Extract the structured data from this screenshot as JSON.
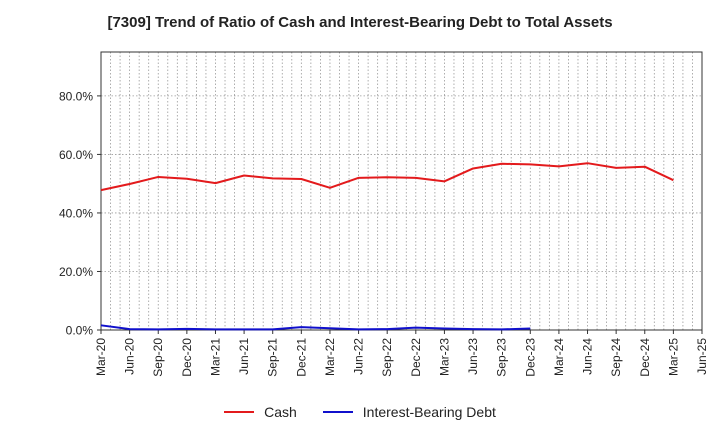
{
  "chart_data": {
    "type": "line",
    "title": "[7309]  Trend of Ratio of Cash and Interest-Bearing Debt to Total Assets",
    "xlabel": "",
    "ylabel": "",
    "ylim": [
      0,
      95
    ],
    "yticks": [
      0,
      20,
      40,
      60,
      80
    ],
    "ytick_labels": [
      "0.0%",
      "20.0%",
      "40.0%",
      "60.0%",
      "80.0%"
    ],
    "categories": [
      "Mar-20",
      "Jun-20",
      "Sep-20",
      "Dec-20",
      "Mar-21",
      "Jun-21",
      "Sep-21",
      "Dec-21",
      "Mar-22",
      "Jun-22",
      "Sep-22",
      "Dec-22",
      "Mar-23",
      "Jun-23",
      "Sep-23",
      "Dec-23",
      "Mar-24",
      "Jun-24",
      "Sep-24",
      "Dec-24",
      "Mar-25",
      "Jun-25"
    ],
    "grid": true,
    "legend_position": "bottom",
    "series": [
      {
        "name": "Cash",
        "color": "#e31a1c",
        "values": [
          47.8,
          49.9,
          52.3,
          51.7,
          50.2,
          52.8,
          51.8,
          51.6,
          48.6,
          52.0,
          52.2,
          52.0,
          50.8,
          55.2,
          56.8,
          56.6,
          55.9,
          57.0,
          55.4,
          55.8,
          51.2,
          null
        ]
      },
      {
        "name": "Interest-Bearing Debt",
        "color": "#1010cc",
        "values": [
          1.6,
          0.3,
          0.2,
          0.4,
          0.2,
          0.2,
          0.2,
          1.0,
          0.6,
          0.2,
          0.3,
          0.8,
          0.5,
          0.3,
          0.2,
          0.5,
          null,
          null,
          null,
          null,
          null,
          null
        ]
      }
    ]
  }
}
